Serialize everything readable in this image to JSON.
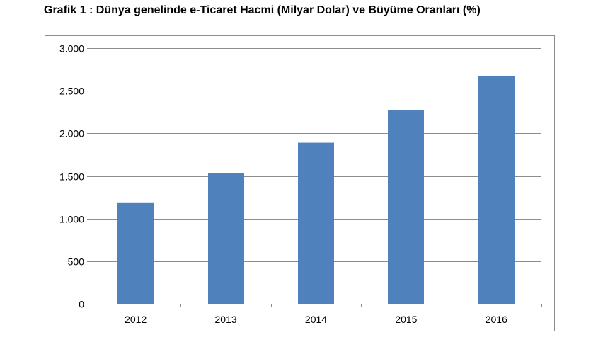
{
  "title": "Grafik 1 : Dünya genelinde e-Ticaret Hacmi (Milyar Dolar) ve Büyüme Oranları (%)",
  "chart_data": {
    "type": "bar",
    "title": "Grafik 1 : Dünya genelinde e-Ticaret Hacmi (Milyar Dolar) ve Büyüme Oranları (%)",
    "categories": [
      "2012",
      "2013",
      "2014",
      "2015",
      "2016"
    ],
    "series": [
      {
        "values": [
          1190,
          1535,
          1890,
          2270,
          2670
        ],
        "color": "#4f81bd"
      }
    ],
    "ylim": [
      0,
      3000
    ],
    "y_ticks": [
      0,
      500,
      1000,
      1500,
      2000,
      2500,
      3000
    ],
    "y_tick_labels": [
      "0",
      "500",
      "1.000",
      "1.500",
      "2.000",
      "2.500",
      "3.000"
    ],
    "xlabel": "",
    "ylabel": "",
    "grid": true,
    "legend": "none",
    "colors": {
      "bar": "#4f81bd",
      "gridline": "#8c8c8c",
      "axis": "#8c8c8c",
      "frame": "#8c8c8c"
    }
  }
}
